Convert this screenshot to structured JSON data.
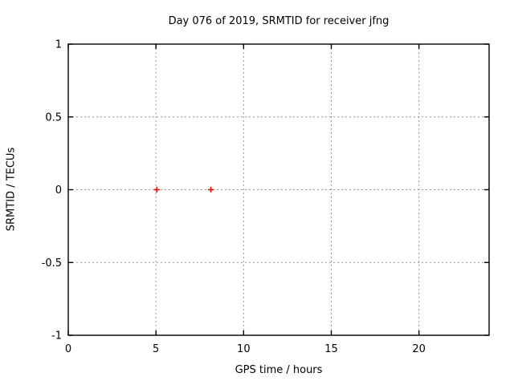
{
  "chart_data": {
    "type": "scatter",
    "title": "Day 076 of 2019, SRMTID for receiver jfng",
    "xlabel": "GPS time / hours",
    "ylabel": "SRMTID / TECUs",
    "xlim": [
      0,
      24
    ],
    "ylim": [
      -1,
      1
    ],
    "xticks": [
      0,
      5,
      10,
      15,
      20
    ],
    "xtick_labels": [
      "0",
      "5",
      "10",
      "15",
      "20"
    ],
    "yticks": [
      -1,
      -0.5,
      0,
      0.5,
      1
    ],
    "ytick_labels": [
      "-1",
      "-0.5",
      "0",
      "0.5",
      "1"
    ],
    "grid": true,
    "grid_style": "dotted",
    "legend": "none",
    "series": [
      {
        "name": "SRMTID",
        "marker": "plus",
        "color": "#ff0000",
        "points": [
          [
            5.05,
            0.0
          ],
          [
            8.13,
            0.0
          ]
        ]
      }
    ]
  },
  "colors": {
    "background": "#ffffff",
    "frame": "#000000",
    "grid": "#999999",
    "text": "#000000",
    "marker": "#ff0000"
  }
}
